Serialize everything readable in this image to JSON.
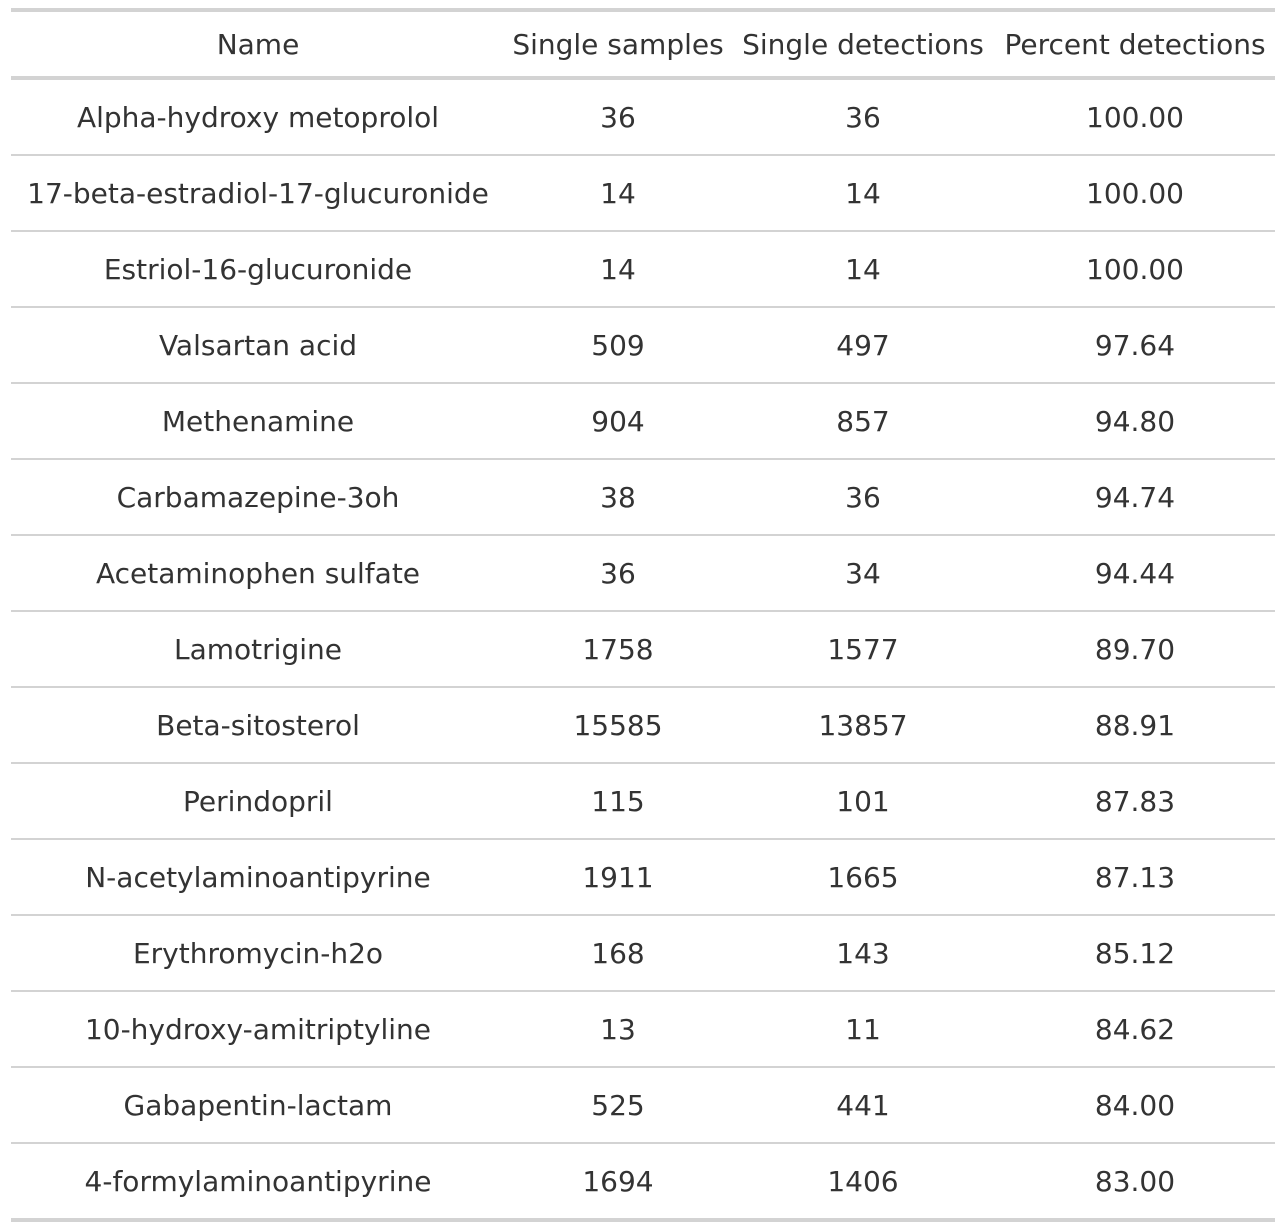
{
  "table": {
    "headers": [
      "Name",
      "Single samples",
      "Single detections",
      "Percent detections"
    ],
    "rows": [
      [
        "Alpha-hydroxy metoprolol",
        "36",
        "36",
        "100.00"
      ],
      [
        "17-beta-estradiol-17-glucuronide",
        "14",
        "14",
        "100.00"
      ],
      [
        "Estriol-16-glucuronide",
        "14",
        "14",
        "100.00"
      ],
      [
        "Valsartan acid",
        "509",
        "497",
        "97.64"
      ],
      [
        "Methenamine",
        "904",
        "857",
        "94.80"
      ],
      [
        "Carbamazepine-3oh",
        "38",
        "36",
        "94.74"
      ],
      [
        "Acetaminophen sulfate",
        "36",
        "34",
        "94.44"
      ],
      [
        "Lamotrigine",
        "1758",
        "1577",
        "89.70"
      ],
      [
        "Beta-sitosterol",
        "15585",
        "13857",
        "88.91"
      ],
      [
        "Perindopril",
        "115",
        "101",
        "87.83"
      ],
      [
        "N-acetylaminoantipyrine",
        "1911",
        "1665",
        "87.13"
      ],
      [
        "Erythromycin-h2o",
        "168",
        "143",
        "85.12"
      ],
      [
        "10-hydroxy-amitriptyline",
        "13",
        "11",
        "84.62"
      ],
      [
        "Gabapentin-lactam",
        "525",
        "441",
        "84.00"
      ],
      [
        "4-formylaminoantipyrine",
        "1694",
        "1406",
        "83.00"
      ]
    ]
  }
}
